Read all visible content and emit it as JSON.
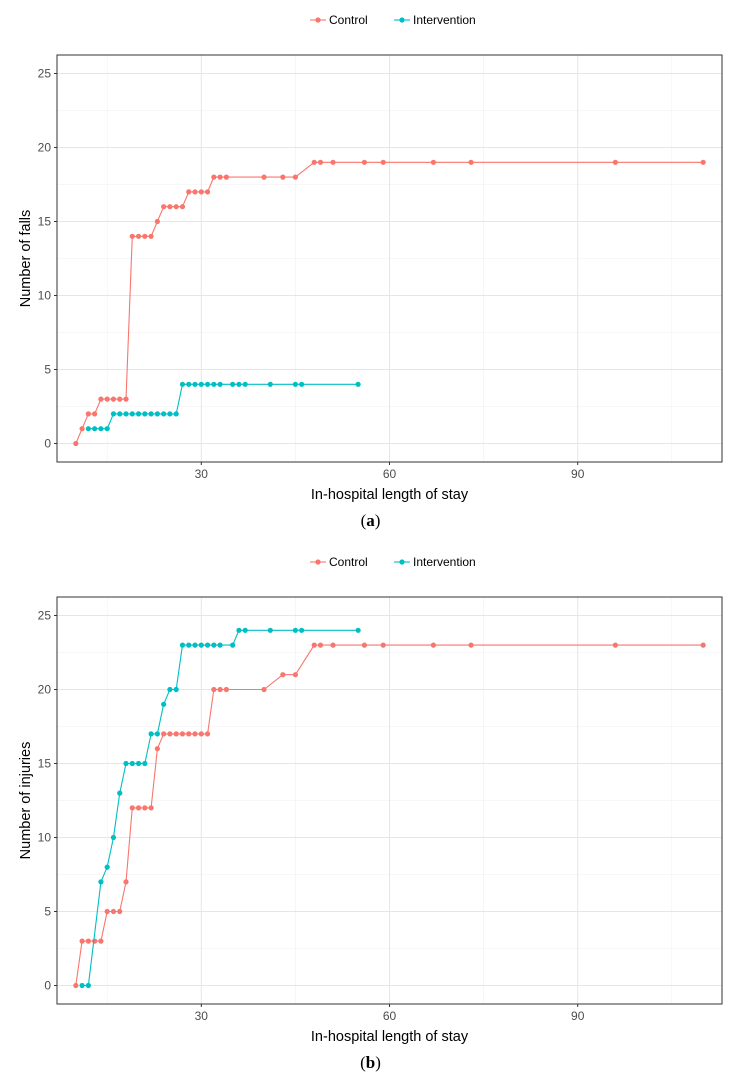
{
  "chart_data": [
    {
      "type": "line",
      "panel_label": "a",
      "xlabel": "In-hospital length of stay",
      "ylabel": "Number of falls",
      "xlim": [
        7,
        113
      ],
      "ylim": [
        -1.25,
        26.25
      ],
      "xticks": [
        30,
        60,
        90
      ],
      "yticks": [
        0,
        5,
        10,
        15,
        20,
        25
      ],
      "grid": true,
      "legend_position": "top",
      "series": [
        {
          "name": "Control",
          "color": "#F8766D",
          "x": [
            10,
            11,
            12,
            13,
            14,
            15,
            16,
            17,
            18,
            19,
            20,
            21,
            22,
            23,
            24,
            25,
            26,
            27,
            28,
            29,
            30,
            31,
            32,
            33,
            34,
            40,
            43,
            45,
            48,
            49,
            51,
            56,
            59,
            67,
            73,
            96,
            110
          ],
          "y": [
            0,
            1,
            2,
            2,
            3,
            3,
            3,
            3,
            3,
            14,
            14,
            14,
            14,
            15,
            16,
            16,
            16,
            16,
            17,
            17,
            17,
            17,
            18,
            18,
            18,
            18,
            18,
            18,
            19,
            19,
            19,
            19,
            19,
            19,
            19,
            19,
            19
          ]
        },
        {
          "name": "Intervention",
          "color": "#00BFC4",
          "x": [
            12,
            13,
            14,
            15,
            16,
            17,
            18,
            19,
            20,
            21,
            22,
            23,
            24,
            25,
            26,
            27,
            28,
            29,
            30,
            31,
            32,
            33,
            35,
            36,
            37,
            41,
            45,
            46,
            55
          ],
          "y": [
            1,
            1,
            1,
            1,
            2,
            2,
            2,
            2,
            2,
            2,
            2,
            2,
            2,
            2,
            2,
            4,
            4,
            4,
            4,
            4,
            4,
            4,
            4,
            4,
            4,
            4,
            4,
            4,
            4
          ]
        }
      ]
    },
    {
      "type": "line",
      "panel_label": "b",
      "xlabel": "In-hospital length of stay",
      "ylabel": "Number of injuries",
      "xlim": [
        7,
        113
      ],
      "ylim": [
        -1.25,
        26.25
      ],
      "xticks": [
        30,
        60,
        90
      ],
      "yticks": [
        0,
        5,
        10,
        15,
        20,
        25
      ],
      "grid": true,
      "legend_position": "top",
      "series": [
        {
          "name": "Control",
          "color": "#F8766D",
          "x": [
            10,
            11,
            12,
            13,
            14,
            15,
            16,
            17,
            18,
            19,
            20,
            21,
            22,
            23,
            24,
            25,
            26,
            27,
            28,
            29,
            30,
            31,
            32,
            33,
            34,
            40,
            43,
            45,
            48,
            49,
            51,
            56,
            59,
            67,
            73,
            96,
            110
          ],
          "y": [
            0,
            3,
            3,
            3,
            3,
            5,
            5,
            5,
            7,
            12,
            12,
            12,
            12,
            16,
            17,
            17,
            17,
            17,
            17,
            17,
            17,
            17,
            20,
            20,
            20,
            20,
            21,
            21,
            23,
            23,
            23,
            23,
            23,
            23,
            23,
            23,
            23
          ]
        },
        {
          "name": "Intervention",
          "color": "#00BFC4",
          "x": [
            11,
            12,
            14,
            15,
            16,
            17,
            18,
            19,
            20,
            21,
            22,
            23,
            24,
            25,
            26,
            27,
            28,
            29,
            30,
            31,
            32,
            33,
            35,
            36,
            37,
            41,
            45,
            46,
            55
          ],
          "y": [
            0,
            0,
            7,
            8,
            10,
            13,
            15,
            15,
            15,
            15,
            17,
            17,
            19,
            20,
            20,
            23,
            23,
            23,
            23,
            23,
            23,
            23,
            23,
            24,
            24,
            24,
            24,
            24,
            24
          ]
        }
      ]
    }
  ]
}
